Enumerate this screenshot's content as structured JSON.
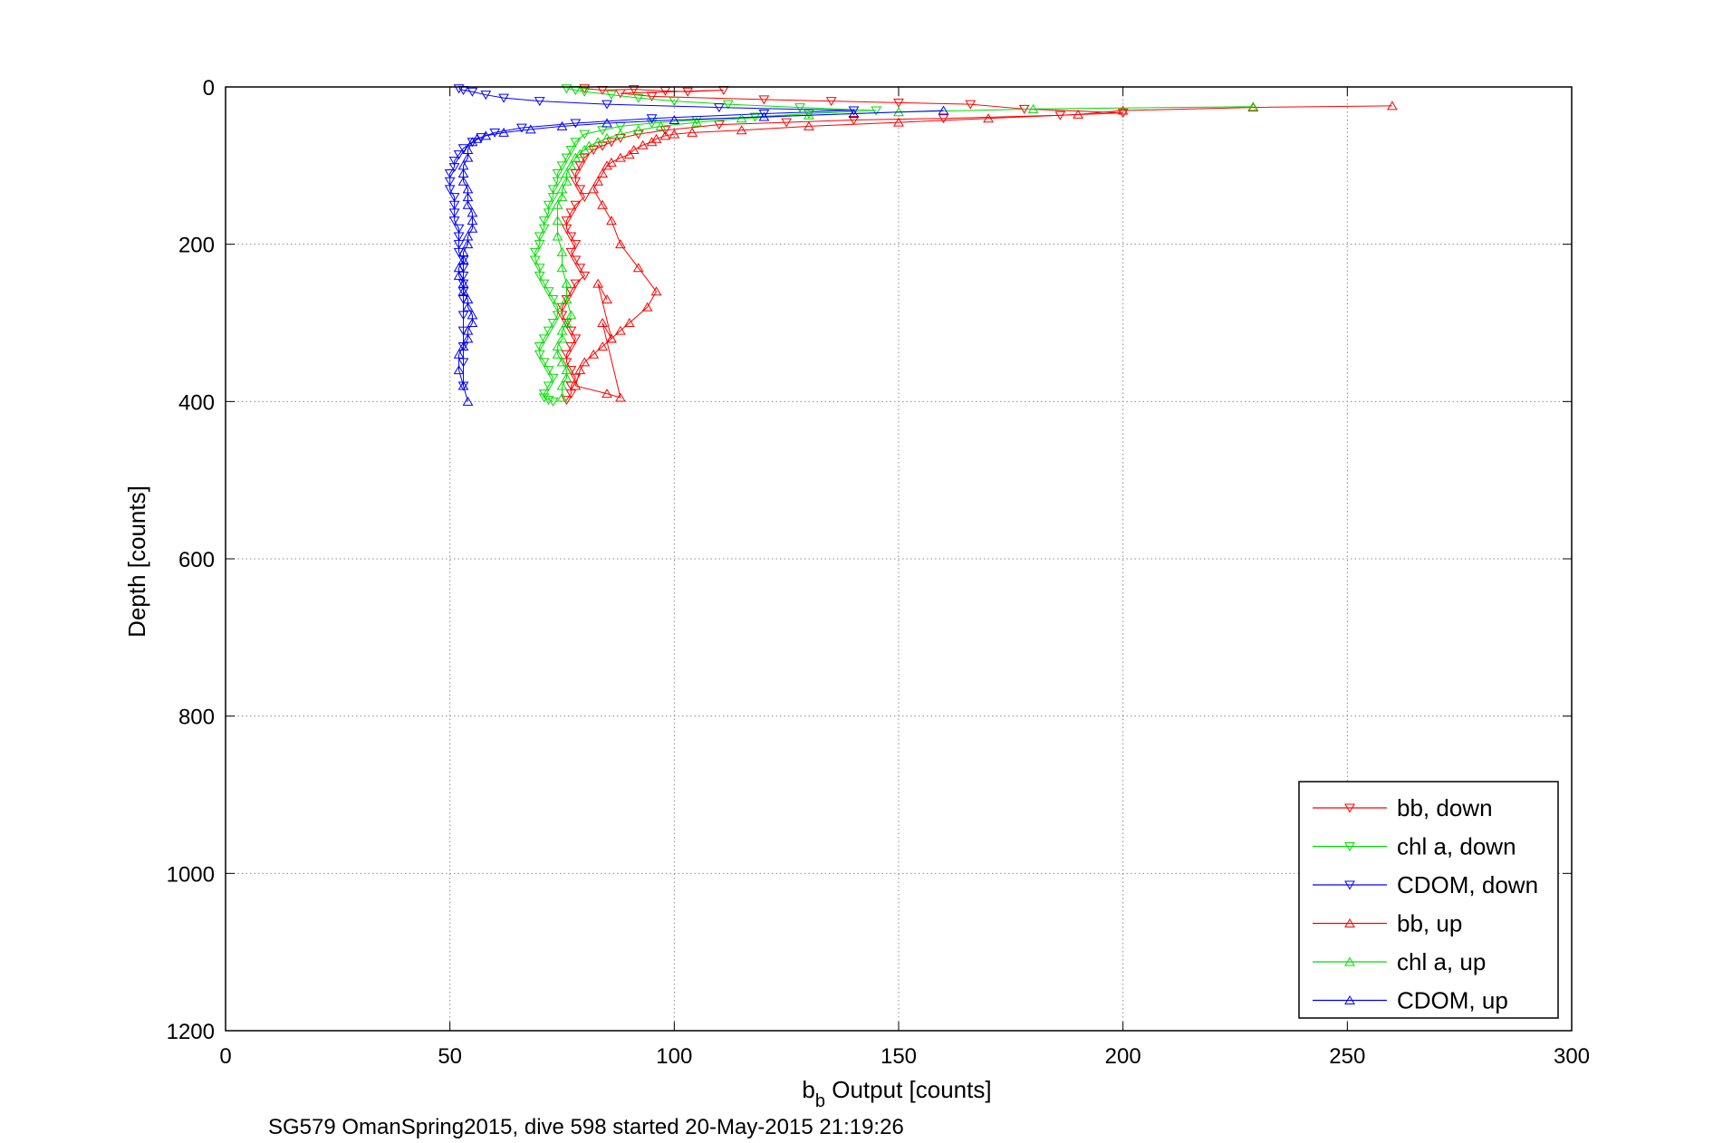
{
  "chart_data": {
    "type": "scatter",
    "title": "",
    "xlabel_main": "b",
    "xlabel_sub": "b",
    "xlabel_rest": " Output [counts]",
    "ylabel": "Depth [counts]",
    "caption": "SG579 OmanSpring2015, dive 598 started 20-May-2015 21:19:26",
    "xlim": [
      0,
      300
    ],
    "ylim": [
      0,
      1200
    ],
    "y_reversed": true,
    "grid": true,
    "legend_position": "bottom-right",
    "x_ticks": [
      0,
      50,
      100,
      150,
      200,
      250,
      300
    ],
    "y_ticks": [
      0,
      200,
      400,
      600,
      800,
      1000,
      1200
    ],
    "series": [
      {
        "name": "bb, down",
        "color": "#ff0000",
        "marker": "triangle-down",
        "line": true,
        "x": [
          80,
          84,
          91,
          98,
          103,
          111,
          88,
          95,
          120,
          135,
          150,
          166,
          178,
          200,
          186,
          160,
          140,
          125,
          110,
          98,
          92,
          88,
          86,
          84,
          82,
          80,
          79,
          78,
          78,
          79,
          80,
          78,
          77,
          76,
          76,
          77,
          78,
          77,
          78,
          79,
          80,
          78,
          77,
          76,
          75,
          75,
          76,
          77,
          78,
          77,
          76,
          76,
          77,
          78,
          77,
          77,
          76
        ],
        "y": [
          2,
          4,
          3,
          5,
          6,
          4,
          8,
          12,
          16,
          18,
          20,
          22,
          28,
          33,
          36,
          40,
          42,
          45,
          48,
          55,
          60,
          65,
          70,
          75,
          80,
          90,
          100,
          110,
          120,
          130,
          140,
          150,
          160,
          170,
          180,
          190,
          200,
          210,
          220,
          230,
          240,
          250,
          260,
          270,
          280,
          290,
          300,
          310,
          320,
          330,
          340,
          350,
          360,
          370,
          380,
          390,
          398
        ]
      },
      {
        "name": "chl a, down",
        "color": "#00dd00",
        "marker": "triangle-down",
        "line": true,
        "x": [
          76,
          78,
          80,
          86,
          92,
          100,
          112,
          128,
          145,
          130,
          118,
          105,
          95,
          88,
          84,
          80,
          78,
          77,
          76,
          75,
          74,
          74,
          73,
          73,
          72,
          72,
          71,
          71,
          70,
          70,
          69,
          69,
          70,
          70,
          71,
          72,
          73,
          74,
          74,
          73,
          72,
          71,
          70,
          70,
          71,
          72,
          73,
          72,
          71,
          71,
          72,
          73
        ],
        "y": [
          2,
          4,
          6,
          10,
          14,
          18,
          22,
          26,
          30,
          34,
          38,
          42,
          46,
          50,
          55,
          60,
          70,
          80,
          90,
          100,
          110,
          120,
          130,
          140,
          150,
          160,
          170,
          180,
          190,
          200,
          210,
          220,
          230,
          240,
          250,
          260,
          270,
          280,
          290,
          300,
          310,
          320,
          330,
          340,
          350,
          360,
          370,
          380,
          390,
          395,
          398,
          400
        ]
      },
      {
        "name": "CDOM, down",
        "color": "#0000ff",
        "marker": "triangle-down",
        "line": true,
        "x": [
          52,
          53,
          55,
          58,
          62,
          70,
          85,
          110,
          140,
          120,
          95,
          78,
          66,
          60,
          57,
          55,
          53,
          52,
          51,
          51,
          50,
          50,
          50,
          51,
          51,
          51,
          51,
          52,
          52,
          52,
          52,
          53,
          53,
          53,
          53,
          53,
          53,
          53,
          53,
          53,
          53,
          53
        ],
        "y": [
          2,
          4,
          6,
          10,
          14,
          18,
          22,
          26,
          30,
          34,
          40,
          46,
          52,
          58,
          64,
          70,
          78,
          86,
          94,
          102,
          110,
          120,
          130,
          140,
          150,
          160,
          170,
          180,
          190,
          200,
          210,
          220,
          230,
          240,
          250,
          260,
          270,
          290,
          310,
          330,
          350,
          380
        ]
      },
      {
        "name": "bb, up",
        "color": "#ff0000",
        "marker": "triangle-up",
        "line": true,
        "x": [
          260,
          229,
          200,
          190,
          170,
          150,
          130,
          115,
          104,
          100,
          98,
          96,
          95,
          93,
          91,
          90,
          88,
          86,
          85,
          84,
          83,
          82,
          84,
          86,
          88,
          92,
          96,
          94,
          90,
          88,
          86,
          84,
          82,
          80,
          79,
          78,
          85,
          88,
          84,
          86,
          83,
          85
        ],
        "y": [
          24,
          26,
          30,
          35,
          40,
          45,
          50,
          55,
          58,
          60,
          62,
          66,
          70,
          74,
          80,
          86,
          90,
          96,
          100,
          110,
          120,
          130,
          150,
          170,
          200,
          230,
          260,
          280,
          300,
          310,
          320,
          330,
          340,
          350,
          360,
          380,
          390,
          395,
          300,
          320,
          250,
          270
        ]
      },
      {
        "name": "chl a, up",
        "color": "#00dd00",
        "marker": "triangle-up",
        "line": true,
        "x": [
          229,
          180,
          150,
          130,
          115,
          105,
          97,
          92,
          88,
          85,
          83,
          81,
          80,
          79,
          78,
          77,
          76,
          76,
          75,
          75,
          74,
          74,
          74,
          75,
          75,
          76,
          76,
          77,
          76,
          75,
          75,
          74,
          74,
          75,
          76,
          76,
          75,
          75
        ],
        "y": [
          25,
          28,
          32,
          36,
          40,
          45,
          50,
          55,
          60,
          65,
          70,
          75,
          80,
          85,
          90,
          100,
          110,
          120,
          130,
          140,
          150,
          170,
          190,
          210,
          230,
          250,
          270,
          290,
          300,
          310,
          320,
          330,
          340,
          350,
          360,
          370,
          380,
          395
        ]
      },
      {
        "name": "CDOM, up",
        "color": "#0000ff",
        "marker": "triangle-up",
        "line": true,
        "x": [
          160,
          140,
          120,
          100,
          85,
          75,
          68,
          62,
          58,
          56,
          55,
          54,
          54,
          53,
          53,
          53,
          54,
          54,
          54,
          55,
          55,
          55,
          54,
          54,
          53,
          53,
          52,
          52,
          53,
          53,
          54,
          54,
          55,
          55,
          54,
          54,
          53,
          52,
          52,
          53,
          54
        ],
        "y": [
          30,
          34,
          38,
          42,
          46,
          50,
          54,
          58,
          62,
          66,
          70,
          80,
          90,
          100,
          110,
          120,
          130,
          140,
          150,
          160,
          170,
          180,
          190,
          200,
          210,
          220,
          230,
          240,
          250,
          260,
          270,
          280,
          290,
          300,
          310,
          320,
          330,
          340,
          360,
          380,
          400
        ]
      }
    ]
  }
}
